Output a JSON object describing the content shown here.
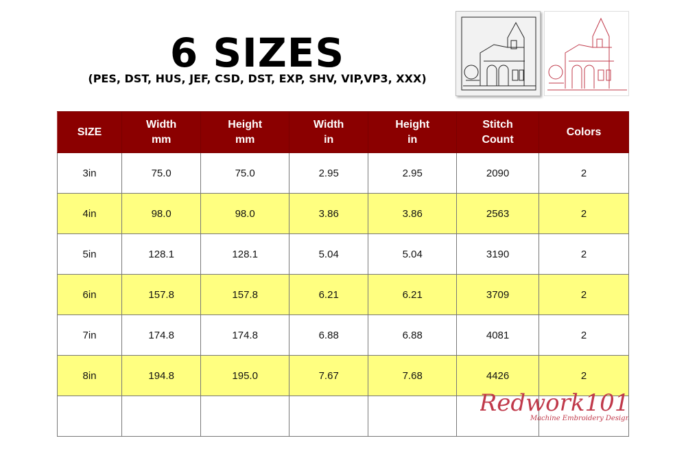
{
  "heading": {
    "title": "6 SIZES",
    "formats": "(PES, DST, HUS, JEF, CSD, DST, EXP, SHV, VIP,VP3, XXX)"
  },
  "table": {
    "headers": [
      [
        "SIZE",
        ""
      ],
      [
        "Width",
        "mm"
      ],
      [
        "Height",
        "mm"
      ],
      [
        "Width",
        "in"
      ],
      [
        "Height",
        "in"
      ],
      [
        "Stitch",
        "Count"
      ],
      [
        "Colors",
        ""
      ]
    ],
    "rows": [
      [
        "3in",
        "75.0",
        "75.0",
        "2.95",
        "2.95",
        "2090",
        "2"
      ],
      [
        "4in",
        "98.0",
        "98.0",
        "3.86",
        "3.86",
        "2563",
        "2"
      ],
      [
        "5in",
        "128.1",
        "128.1",
        "5.04",
        "5.04",
        "3190",
        "2"
      ],
      [
        "6in",
        "157.8",
        "157.8",
        "6.21",
        "6.21",
        "3709",
        "2"
      ],
      [
        "7in",
        "174.8",
        "174.8",
        "6.88",
        "6.88",
        "4081",
        "2"
      ],
      [
        "8in",
        "194.8",
        "195.0",
        "7.67",
        "7.68",
        "4426",
        "2"
      ],
      [
        "",
        "",
        "",
        "",
        "",
        "",
        ""
      ]
    ]
  },
  "logo": {
    "name": "Redwork101",
    "tagline": "Machine Embroidery Designs"
  },
  "colors": {
    "header": "#8b0000",
    "alt_row": "#ffff80",
    "redwork": "#c0394a"
  }
}
